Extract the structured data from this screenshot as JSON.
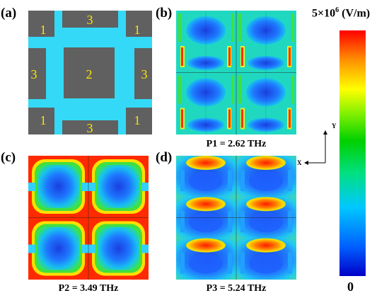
{
  "panels": {
    "a": {
      "label": "(a)",
      "region_labels": [
        "1",
        "3",
        "1",
        "3",
        "2",
        "3",
        "1",
        "3",
        "1"
      ]
    },
    "b": {
      "label": "(b)",
      "caption": "P1 = 2.62 THz"
    },
    "c": {
      "label": "(c)",
      "caption": "P2 = 3.49 THz"
    },
    "d": {
      "label": "(d)",
      "caption": "P3 = 5.24 THz"
    }
  },
  "colorbar": {
    "max_base": "5×10",
    "max_exp": "6",
    "max_unit": " (V/m)",
    "min": "0",
    "colors": [
      "#0000c8",
      "#0060ff",
      "#00c8ff",
      "#00e080",
      "#00d000",
      "#80f000",
      "#ffff00",
      "#ff9000",
      "#ff0000"
    ]
  },
  "axes": {
    "x": "X",
    "y": "Y"
  },
  "colors": {
    "unit_cell_bg": "#33d9f7",
    "metal": "#606060",
    "region_text": "#ffe600"
  }
}
